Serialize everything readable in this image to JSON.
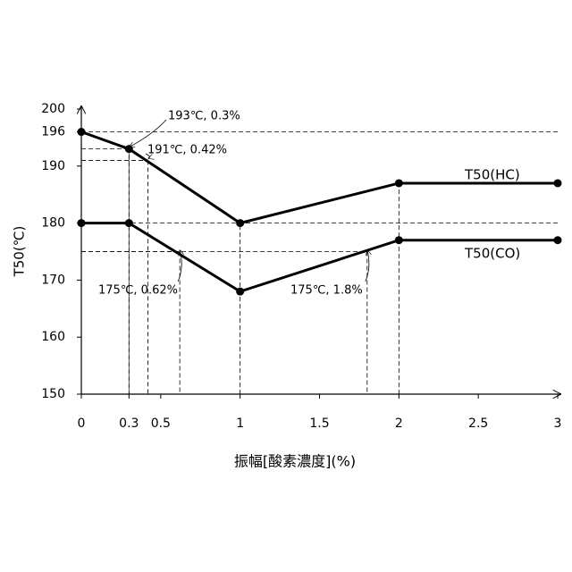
{
  "chart_data": {
    "type": "line",
    "xlabel": "振幅[酸素濃度](%)",
    "ylabel": "T50(℃)",
    "x": [
      0,
      0.3,
      1,
      2,
      3
    ],
    "series": [
      {
        "name": "T50(HC)",
        "color": "#000000",
        "values": [
          196,
          193,
          180,
          187,
          187
        ]
      },
      {
        "name": "T50(CO)",
        "color": "#000000",
        "values": [
          180,
          180,
          168,
          177,
          177
        ]
      }
    ],
    "xlim": [
      0,
      3
    ],
    "ylim": [
      150,
      200
    ],
    "xticks": [
      0,
      0.3,
      0.5,
      1,
      1.5,
      2,
      2.5,
      3
    ],
    "yticks": [
      150,
      160,
      170,
      180,
      190,
      196,
      200
    ],
    "annotations": [
      {
        "text": "193℃, 0.3%",
        "x": 0.3,
        "y": 193
      },
      {
        "text": "191℃, 0.42%",
        "x": 0.42,
        "y": 191
      },
      {
        "text": "175℃, 0.62%",
        "x": 0.62,
        "y": 175
      },
      {
        "text": "175℃, 1.8%",
        "x": 1.8,
        "y": 175
      }
    ]
  }
}
